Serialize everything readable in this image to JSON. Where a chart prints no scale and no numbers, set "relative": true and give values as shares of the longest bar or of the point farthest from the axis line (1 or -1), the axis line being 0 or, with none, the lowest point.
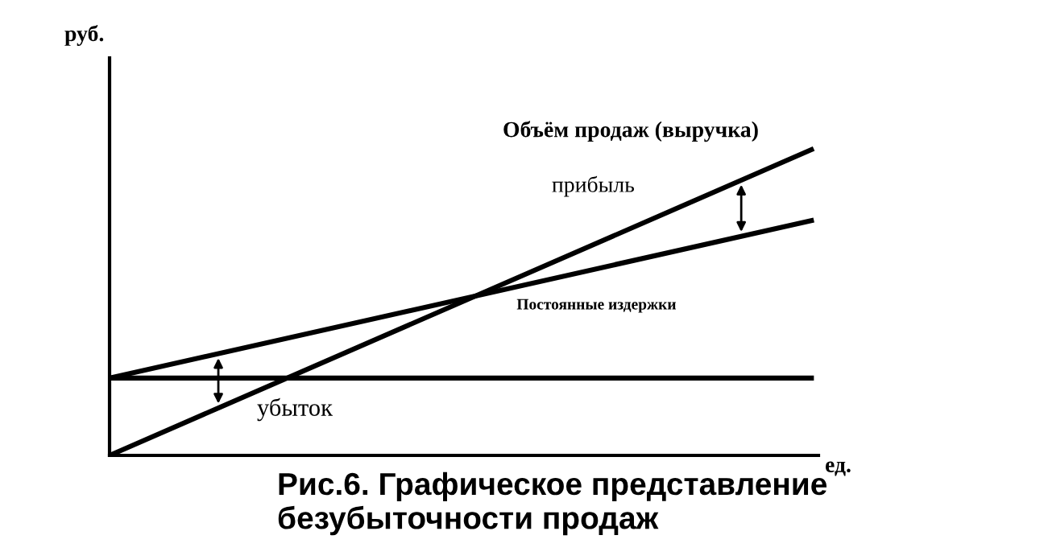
{
  "chart_data": {
    "type": "line",
    "relative": true,
    "title": "Рис.6. Графическое представление безубыточности продаж",
    "xlabel": "ед.",
    "ylabel": "руб.",
    "categories": [
      null,
      null
    ],
    "series": [
      {
        "color": "#000000",
        "values": [
          0,
          1
        ]
      },
      {
        "color": "#000000",
        "values": [
          0.253,
          0.768
        ]
      },
      {
        "color": "#000000",
        "values": [
          0.253,
          0.253
        ]
      }
    ],
    "annotations": [
      "Объём продаж (выручка)",
      "прибыль",
      "Постоянные издержки",
      "убыток"
    ],
    "legend": false,
    "marker": "none",
    "line_style": "solid"
  }
}
